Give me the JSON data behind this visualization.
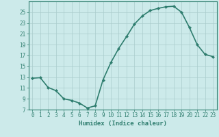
{
  "x": [
    0,
    1,
    2,
    3,
    4,
    5,
    6,
    7,
    8,
    9,
    10,
    11,
    12,
    13,
    14,
    15,
    16,
    17,
    18,
    19,
    20,
    21,
    22,
    23
  ],
  "y": [
    12.8,
    12.9,
    11.1,
    10.5,
    9.0,
    8.7,
    8.2,
    7.3,
    7.7,
    12.5,
    15.7,
    18.3,
    20.5,
    22.8,
    24.3,
    25.3,
    25.7,
    26.0,
    26.1,
    25.0,
    22.2,
    19.0,
    17.2,
    16.8
  ],
  "line_color": "#2e7d6e",
  "marker": "D",
  "marker_size": 2.2,
  "bg_color": "#cceaea",
  "grid_color": "#aacccc",
  "xlabel": "Humidex (Indice chaleur)",
  "xlim": [
    -0.5,
    23.5
  ],
  "ylim": [
    7,
    27
  ],
  "yticks": [
    7,
    9,
    11,
    13,
    15,
    17,
    19,
    21,
    23,
    25
  ],
  "xticks": [
    0,
    1,
    2,
    3,
    4,
    5,
    6,
    7,
    8,
    9,
    10,
    11,
    12,
    13,
    14,
    15,
    16,
    17,
    18,
    19,
    20,
    21,
    22,
    23
  ],
  "tick_fontsize": 5.5,
  "xlabel_fontsize": 6.5,
  "linewidth": 1.2
}
